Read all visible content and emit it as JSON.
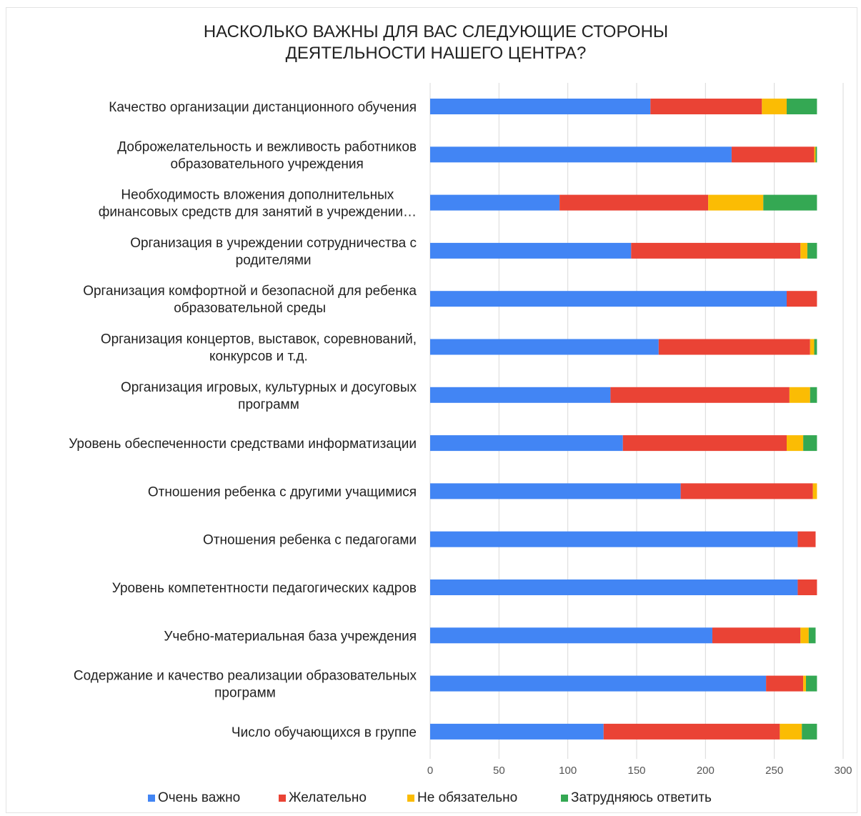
{
  "chart_data": {
    "type": "bar",
    "orientation": "horizontal",
    "stacked": true,
    "title_lines": [
      "НАСКОЛЬКО ВАЖНЫ ДЛЯ ВАС СЛЕДУЮЩИЕ СТОРОНЫ",
      "ДЕЯТЕЛЬНОСТИ НАШЕГО ЦЕНТРА?"
    ],
    "categories": [
      [
        "Качество организации дистанционного обучения"
      ],
      [
        "Доброжелательность и вежливость работников",
        "образовательного учреждения"
      ],
      [
        "Необходимость вложения дополнительных",
        "финансовых средств для занятий в учреждении…"
      ],
      [
        "Организация в учреждении сотрудничества с",
        "родителями"
      ],
      [
        "Организация комфортной и безопасной для ребенка",
        "образовательной среды"
      ],
      [
        "Организация концертов, выставок, соревнований,",
        "конкурсов и т.д."
      ],
      [
        "Организация игровых, культурных и досуговых",
        "программ"
      ],
      [
        "Уровень обеспеченности средствами информатизации"
      ],
      [
        "Отношения ребенка с другими учащимися"
      ],
      [
        "Отношения ребенка с педагогами"
      ],
      [
        "Уровень компетентности педагогических кадров"
      ],
      [
        "Учебно-материальная база учреждения"
      ],
      [
        "Содержание и качество реализации образовательных",
        "программ"
      ],
      [
        "Число обучающихся в группе"
      ]
    ],
    "series": [
      {
        "name": "Очень важно",
        "color": "#4285f4",
        "values": [
          160,
          219,
          94,
          146,
          259,
          166,
          131,
          140,
          182,
          267,
          267,
          205,
          244,
          126
        ]
      },
      {
        "name": "Желательно",
        "color": "#ea4335",
        "values": [
          81,
          60,
          108,
          123,
          22,
          110,
          130,
          119,
          96,
          13,
          14,
          64,
          27,
          128
        ]
      },
      {
        "name": "Не обязательно",
        "color": "#fbbc04",
        "values": [
          18,
          1,
          40,
          5,
          0,
          3,
          15,
          12,
          3,
          0,
          0,
          6,
          2,
          16
        ]
      },
      {
        "name": "Затрудняюсь ответить",
        "color": "#34a853",
        "values": [
          22,
          1,
          39,
          7,
          0,
          2,
          5,
          10,
          0,
          0,
          0,
          5,
          8,
          11
        ]
      }
    ],
    "xlim": [
      0,
      300
    ],
    "xticks": [
      "0",
      "50",
      "100",
      "150",
      "200",
      "250",
      "300"
    ],
    "grid": true,
    "legend_position": "bottom"
  }
}
